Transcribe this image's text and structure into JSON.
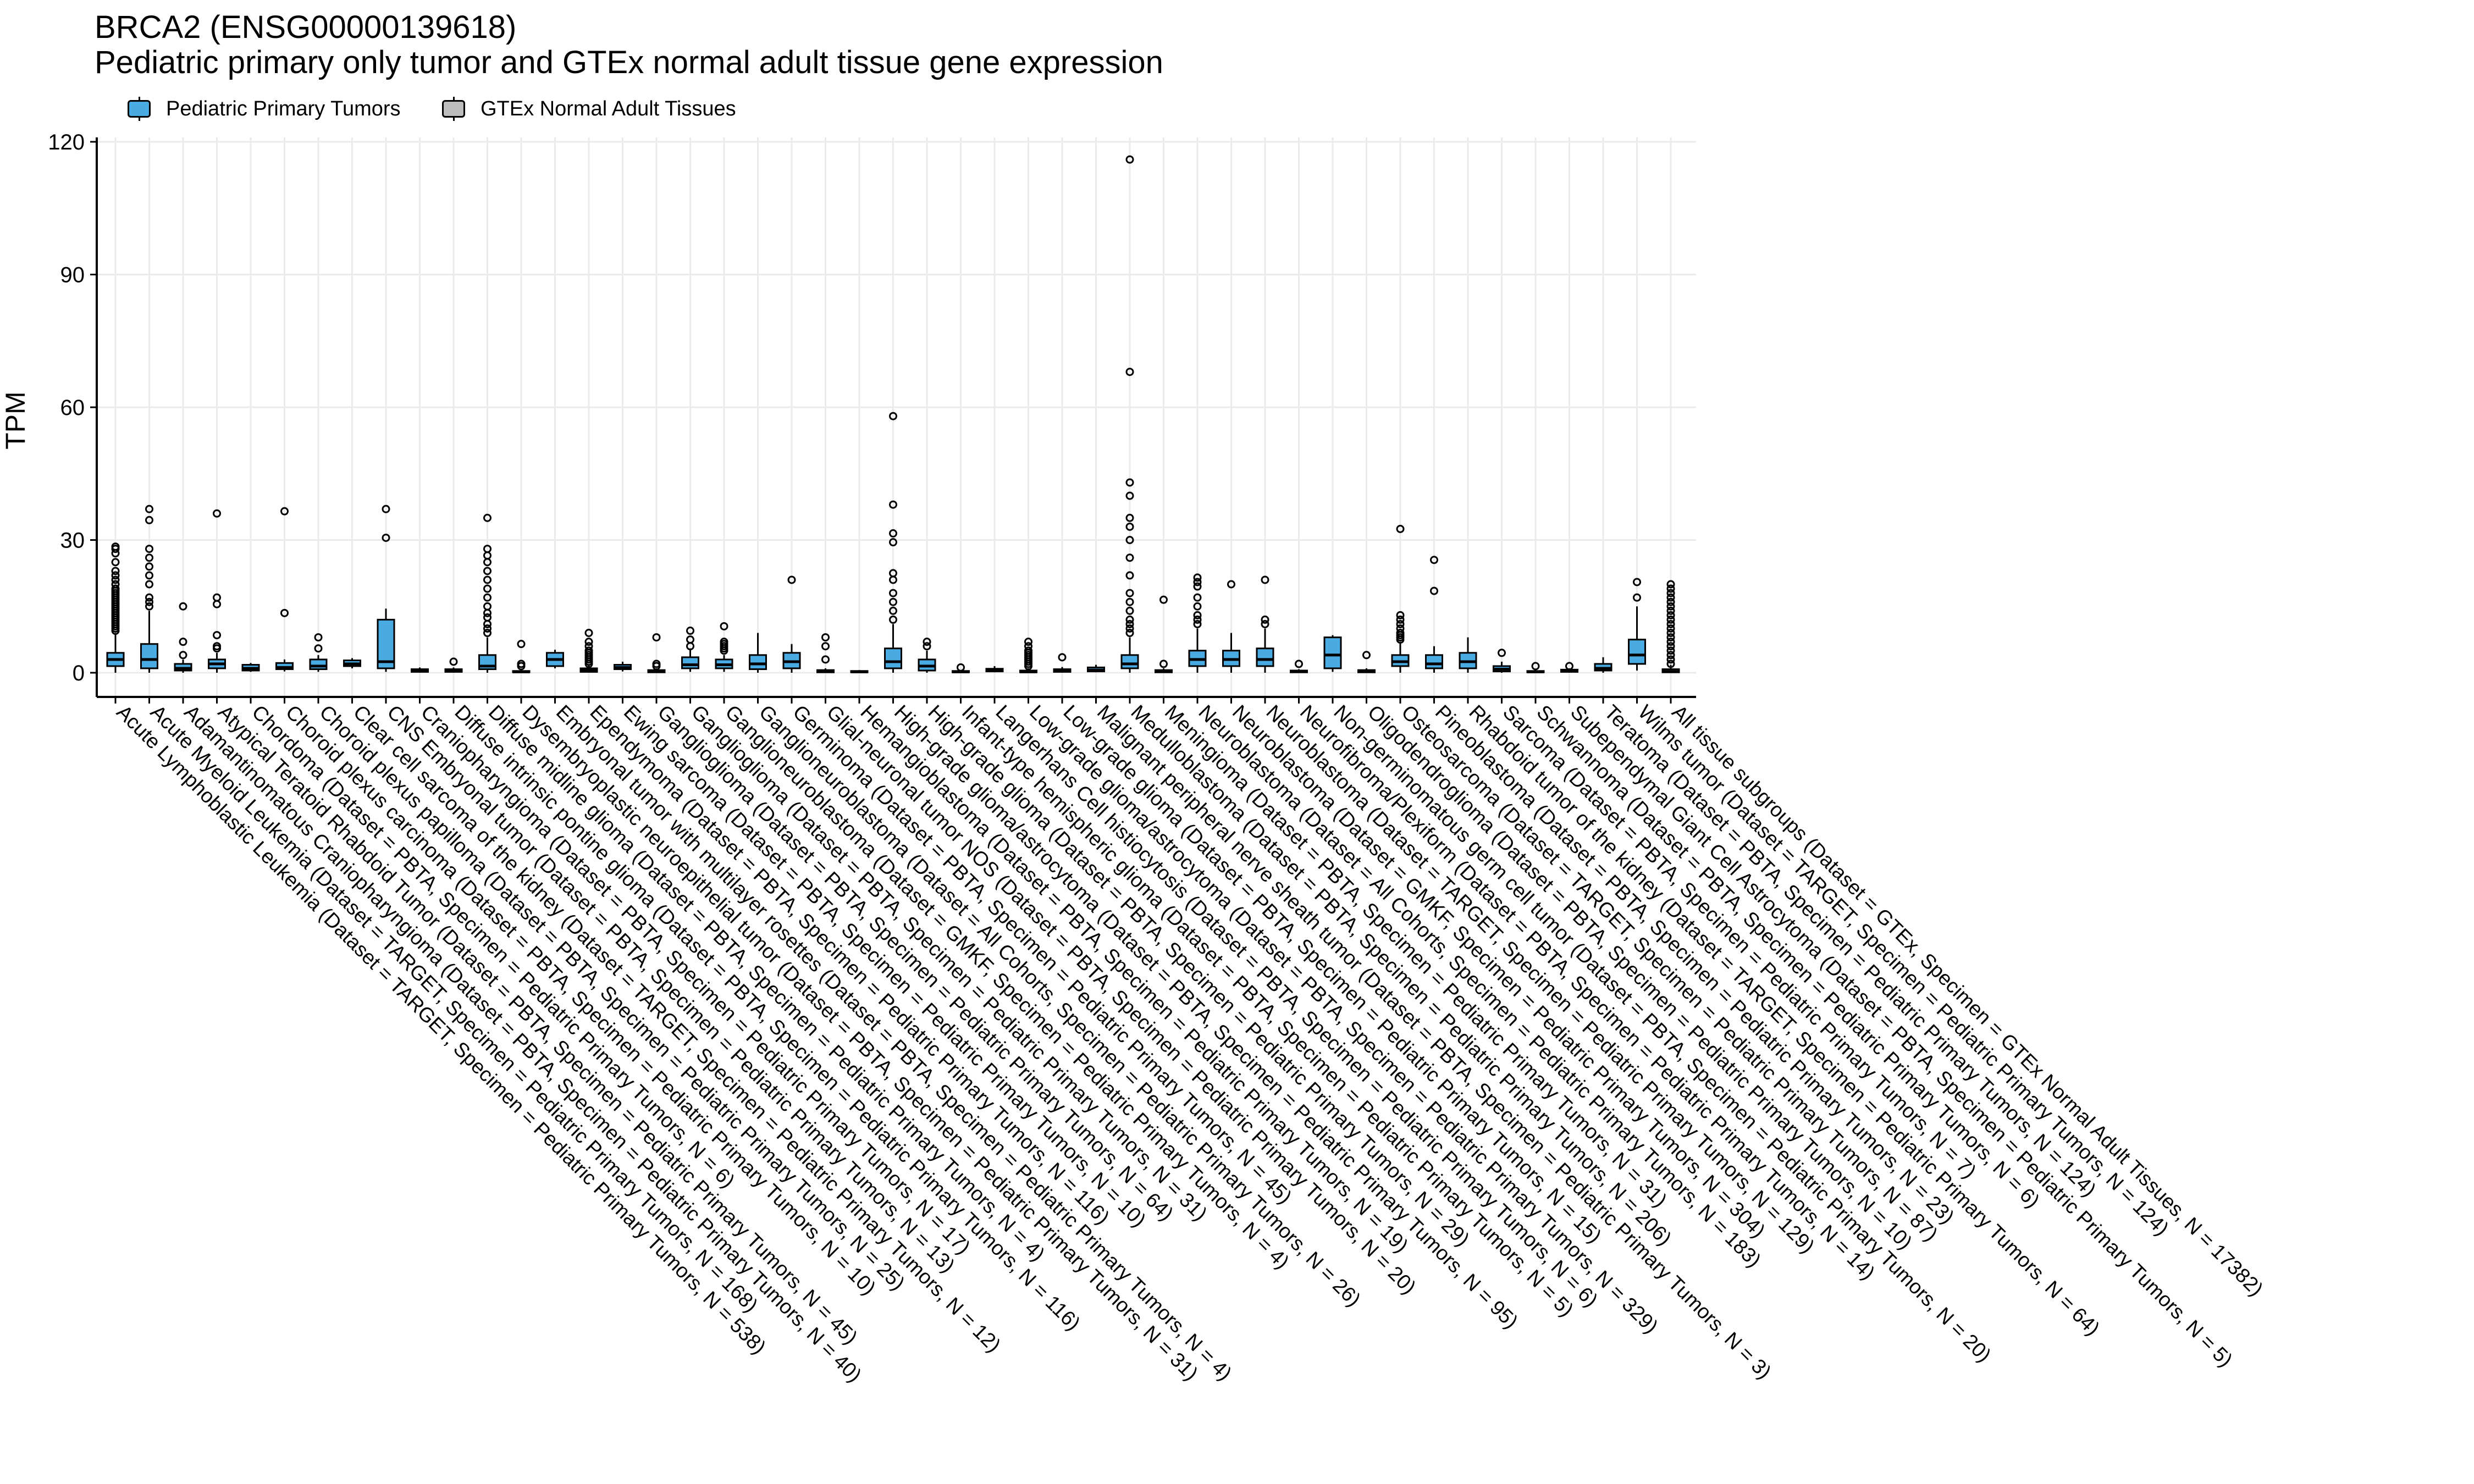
{
  "title": {
    "line1": "BRCA2 (ENSG00000139618)",
    "line2": "Pediatric primary only tumor and GTEx normal adult tissue gene expression"
  },
  "legend": {
    "items": [
      {
        "label": "Pediatric Primary Tumors",
        "color": "#4AABE3"
      },
      {
        "label": "GTEx Normal Adult Tissues",
        "color": "#BDBDBD"
      }
    ]
  },
  "chart_data": {
    "type": "boxplot",
    "ylabel": "TPM",
    "xlabel": "",
    "ylim": [
      0,
      120
    ],
    "yticks": [
      0,
      30,
      60,
      90,
      120
    ],
    "grid": true,
    "legend_position": "top-left",
    "series": [
      {
        "category": "Acute Lymphoblastic Leukemia (Dataset = TARGET, Specimen = Pediatric Primary Tumors, N = 538)",
        "group": "tumor",
        "q1": 1.5,
        "median": 3,
        "q3": 4.5,
        "whisker_low": 0,
        "whisker_high": 9,
        "outliers": [
          9.5,
          10,
          10.5,
          11,
          11.5,
          12,
          12.5,
          13,
          13.5,
          14,
          14.5,
          15,
          15.5,
          16,
          16.5,
          17,
          17.5,
          18,
          18.5,
          19,
          20,
          21,
          22,
          23,
          25,
          27,
          28,
          28.5
        ]
      },
      {
        "category": "Acute Myeloid Leukemia (Dataset = TARGET, Specimen = Pediatric Primary Tumors, N = 168)",
        "group": "tumor",
        "q1": 1,
        "median": 3,
        "q3": 6.5,
        "whisker_low": 0,
        "whisker_high": 14,
        "outliers": [
          15,
          16,
          17,
          20,
          22,
          24,
          26,
          28,
          34.5,
          37
        ]
      },
      {
        "category": "Adamantinomatous Craniopharyngioma (Dataset = PBTA, Specimen = Pediatric Primary Tumors, N = 40)",
        "group": "tumor",
        "q1": 0.5,
        "median": 1,
        "q3": 2,
        "whisker_low": 0,
        "whisker_high": 3,
        "outliers": [
          4,
          7,
          15
        ]
      },
      {
        "category": "Atypical Teratoid Rhabdoid Tumor (Dataset = PBTA, Specimen = Pediatric Primary Tumors, N = 45)",
        "group": "tumor",
        "q1": 1,
        "median": 2,
        "q3": 3,
        "whisker_low": 0,
        "whisker_high": 4.5,
        "outliers": [
          5.5,
          6,
          8.5,
          15.5,
          17,
          36
        ]
      },
      {
        "category": "Chordoma (Dataset = PBTA, Specimen = Pediatric Primary Tumors, N = 6)",
        "group": "tumor",
        "q1": 0.5,
        "median": 1,
        "q3": 1.8,
        "whisker_low": 0.2,
        "whisker_high": 2.2,
        "outliers": []
      },
      {
        "category": "Choroid plexus carcinoma (Dataset = PBTA, Specimen = Pediatric Primary Tumors, N = 10)",
        "group": "tumor",
        "q1": 0.8,
        "median": 1.2,
        "q3": 2.2,
        "whisker_low": 0.3,
        "whisker_high": 3,
        "outliers": [
          13.5,
          36.5
        ]
      },
      {
        "category": "Choroid plexus papilloma (Dataset = PBTA, Specimen = Pediatric Primary Tumors, N = 25)",
        "group": "tumor",
        "q1": 0.8,
        "median": 1.5,
        "q3": 3,
        "whisker_low": 0.2,
        "whisker_high": 4,
        "outliers": [
          5.5,
          8
        ]
      },
      {
        "category": "Clear cell sarcoma of the kidney (Dataset = TARGET, Specimen = Pediatric Primary Tumors, N = 12)",
        "group": "tumor",
        "q1": 1.5,
        "median": 2,
        "q3": 2.8,
        "whisker_low": 1,
        "whisker_high": 3.3,
        "outliers": []
      },
      {
        "category": "CNS Embryonal tumor (Dataset = PBTA, Specimen = Pediatric Primary Tumors, N = 13)",
        "group": "tumor",
        "q1": 1,
        "median": 2.5,
        "q3": 12,
        "whisker_low": 0.2,
        "whisker_high": 14.5,
        "outliers": [
          30.5,
          37
        ]
      },
      {
        "category": "Craniopharyngioma (Dataset = PBTA, Specimen = Pediatric Primary Tumors, N = 17)",
        "group": "tumor",
        "q1": 0.2,
        "median": 0.4,
        "q3": 0.8,
        "whisker_low": 0,
        "whisker_high": 1.2,
        "outliers": []
      },
      {
        "category": "Diffuse intrinsic pontine glioma (Dataset = PBTA, Specimen = Pediatric Primary Tumors, N = 116)",
        "group": "tumor",
        "q1": 0.2,
        "median": 0.4,
        "q3": 0.8,
        "whisker_low": 0,
        "whisker_high": 1.2,
        "outliers": [
          2.5
        ]
      },
      {
        "category": "Diffuse midline glioma (Dataset = PBTA, Specimen = Pediatric Primary Tumors, N = 4)",
        "group": "tumor",
        "q1": 0.8,
        "median": 1.5,
        "q3": 4,
        "whisker_low": 0,
        "whisker_high": 8,
        "outliers": [
          9,
          10,
          11,
          12.5,
          13.5,
          15,
          17,
          19,
          21,
          23,
          25,
          26.5,
          28,
          35
        ]
      },
      {
        "category": "Dysembryoplastic neuroepithelial tumor (Dataset = PBTA, Specimen = Pediatric Primary Tumors, N = 31)",
        "group": "tumor",
        "q1": 0.1,
        "median": 0.2,
        "q3": 0.4,
        "whisker_low": 0,
        "whisker_high": 0.6,
        "outliers": [
          1.5,
          2,
          6.5
        ]
      },
      {
        "category": "Embryonal tumor with multilayer rosettes (Dataset = PBTA, Specimen = Pediatric Primary Tumors, N = 4)",
        "group": "tumor",
        "q1": 1.5,
        "median": 3,
        "q3": 4.5,
        "whisker_low": 1,
        "whisker_high": 5.2,
        "outliers": []
      },
      {
        "category": "Ependymoma (Dataset = PBTA, Specimen = Pediatric Primary Tumors, N = 116)",
        "group": "tumor",
        "q1": 0.2,
        "median": 0.5,
        "q3": 1,
        "whisker_low": 0,
        "whisker_high": 1.8,
        "outliers": [
          2,
          2.5,
          3,
          3.5,
          4,
          4.5,
          5,
          6,
          7,
          9
        ]
      },
      {
        "category": "Ewing sarcoma (Dataset = PBTA, Specimen = Pediatric Primary Tumors, N = 10)",
        "group": "tumor",
        "q1": 0.8,
        "median": 1.2,
        "q3": 1.8,
        "whisker_low": 0.3,
        "whisker_high": 2.5,
        "outliers": []
      },
      {
        "category": "Ganglioglioma (Dataset = PBTA, Specimen = Pediatric Primary Tumors, N = 64)",
        "group": "tumor",
        "q1": 0.1,
        "median": 0.3,
        "q3": 0.6,
        "whisker_low": 0,
        "whisker_high": 1,
        "outliers": [
          1.5,
          2,
          8
        ]
      },
      {
        "category": "Ganglioglioma (Dataset = PBTA, Specimen = Pediatric Primary Tumors, N = 31)",
        "group": "tumor",
        "q1": 1,
        "median": 1.8,
        "q3": 3.5,
        "whisker_low": 0.2,
        "whisker_high": 5.5,
        "outliers": [
          6,
          7.5,
          9.5
        ]
      },
      {
        "category": "Ganglioneuroblastoma (Dataset = GMKF, Specimen = Pediatric Primary Tumors, N = 4)",
        "group": "tumor",
        "q1": 1,
        "median": 1.8,
        "q3": 3,
        "whisker_low": 0.2,
        "whisker_high": 4,
        "outliers": [
          5,
          5.5,
          6,
          6.5,
          7,
          10.5
        ]
      },
      {
        "category": "Ganglioneuroblastoma (Dataset = All Cohorts, Specimen = Pediatric Primary Tumors, N = 26)",
        "group": "tumor",
        "q1": 0.8,
        "median": 2,
        "q3": 4,
        "whisker_low": 0,
        "whisker_high": 9,
        "outliers": []
      },
      {
        "category": "Germinoma (Dataset = PBTA, Specimen = Pediatric Primary Tumors, N = 45)",
        "group": "tumor",
        "q1": 1,
        "median": 2.5,
        "q3": 4.5,
        "whisker_low": 0,
        "whisker_high": 6.5,
        "outliers": [
          21
        ]
      },
      {
        "category": "Glial-neuronal tumor NOS (Dataset = PBTA, Specimen = Pediatric Primary Tumors, N = 20)",
        "group": "tumor",
        "q1": 0.1,
        "median": 0.3,
        "q3": 0.6,
        "whisker_low": 0,
        "whisker_high": 1,
        "outliers": [
          3,
          6,
          8
        ]
      },
      {
        "category": "Hemangioblastoma (Dataset = PBTA, Specimen = Pediatric Primary Tumors, N = 19)",
        "group": "tumor",
        "q1": 0.1,
        "median": 0.2,
        "q3": 0.4,
        "whisker_low": 0,
        "whisker_high": 0.6,
        "outliers": []
      },
      {
        "category": "High-grade glioma/astrocytoma (Dataset = PBTA, Specimen = Pediatric Primary Tumors, N = 95)",
        "group": "tumor",
        "q1": 1,
        "median": 2.5,
        "q3": 5.5,
        "whisker_low": 0,
        "whisker_high": 11,
        "outliers": [
          12,
          14,
          16,
          18,
          21,
          22.5,
          29.5,
          31.5,
          38,
          58
        ]
      },
      {
        "category": "High-grade glioma (Dataset = PBTA, Specimen = Pediatric Primary Tumors, N = 29)",
        "group": "tumor",
        "q1": 0.5,
        "median": 1.5,
        "q3": 3,
        "whisker_low": 0,
        "whisker_high": 5,
        "outliers": [
          6,
          7
        ]
      },
      {
        "category": "Infant-type hemispheric glioma (Dataset = PBTA, Specimen = Pediatric Primary Tumors, N = 5)",
        "group": "tumor",
        "q1": 0.1,
        "median": 0.2,
        "q3": 0.4,
        "whisker_low": 0,
        "whisker_high": 0.6,
        "outliers": [
          1.2
        ]
      },
      {
        "category": "Langerhans Cell histiocytosis (Dataset = PBTA, Specimen = Pediatric Primary Tumors, N = 6)",
        "group": "tumor",
        "q1": 0.3,
        "median": 0.5,
        "q3": 0.9,
        "whisker_low": 0.1,
        "whisker_high": 1.5,
        "outliers": []
      },
      {
        "category": "Low-grade glioma/astrocytoma (Dataset = PBTA, Specimen = Pediatric Primary Tumors, N = 329)",
        "group": "tumor",
        "q1": 0.1,
        "median": 0.2,
        "q3": 0.5,
        "whisker_low": 0,
        "whisker_high": 1,
        "outliers": [
          1.5,
          2,
          2.5,
          3,
          3.5,
          4,
          4.5,
          5,
          6,
          7
        ]
      },
      {
        "category": "Low-grade glioma (Dataset = PBTA, Specimen = Pediatric Primary Tumors, N = 15)",
        "group": "tumor",
        "q1": 0.2,
        "median": 0.4,
        "q3": 0.8,
        "whisker_low": 0,
        "whisker_high": 1.3,
        "outliers": [
          3.5
        ]
      },
      {
        "category": "Malignant peripheral nerve sheath tumor (Dataset = PBTA, Specimen = Pediatric Primary Tumors, N = 3)",
        "group": "tumor",
        "q1": 0.3,
        "median": 0.6,
        "q3": 1.2,
        "whisker_low": 0.1,
        "whisker_high": 1.8,
        "outliers": []
      },
      {
        "category": "Medulloblastoma (Dataset = PBTA, Specimen = Pediatric Primary Tumors, N = 206)",
        "group": "tumor",
        "q1": 1,
        "median": 2,
        "q3": 4,
        "whisker_low": 0,
        "whisker_high": 8,
        "outliers": [
          9,
          10,
          11,
          12,
          14,
          16,
          18,
          22,
          26,
          30,
          33,
          35,
          40,
          43,
          68,
          116
        ]
      },
      {
        "category": "Meningioma (Dataset = PBTA, Specimen = Pediatric Primary Tumors, N = 31)",
        "group": "tumor",
        "q1": 0.1,
        "median": 0.3,
        "q3": 0.6,
        "whisker_low": 0,
        "whisker_high": 1,
        "outliers": [
          2,
          16.5
        ]
      },
      {
        "category": "Neuroblastoma (Dataset = All Cohorts, Specimen = Pediatric Primary Tumors, N = 183)",
        "group": "tumor",
        "q1": 1.5,
        "median": 3,
        "q3": 5,
        "whisker_low": 0,
        "whisker_high": 10,
        "outliers": [
          11,
          12,
          13,
          15,
          17,
          19.5,
          20.5,
          21.5
        ]
      },
      {
        "category": "Neuroblastoma (Dataset = GMKF, Specimen = Pediatric Primary Tumors, N = 304)",
        "group": "tumor",
        "q1": 1.5,
        "median": 3,
        "q3": 5,
        "whisker_low": 0,
        "whisker_high": 9,
        "outliers": [
          20
        ]
      },
      {
        "category": "Neuroblastoma (Dataset = TARGET, Specimen = Pediatric Primary Tumors, N = 129)",
        "group": "tumor",
        "q1": 1.5,
        "median": 3,
        "q3": 5.5,
        "whisker_low": 0,
        "whisker_high": 10,
        "outliers": [
          11,
          12,
          21
        ]
      },
      {
        "category": "Neurofibroma/Plexiform (Dataset = PBTA, Specimen = Pediatric Primary Tumors, N = 14)",
        "group": "tumor",
        "q1": 0.1,
        "median": 0.3,
        "q3": 0.5,
        "whisker_low": 0,
        "whisker_high": 0.8,
        "outliers": [
          2
        ]
      },
      {
        "category": "Non-germinomatous germ cell tumor (Dataset = PBTA, Specimen = Pediatric Primary Tumors, N = 20)",
        "group": "tumor",
        "q1": 1,
        "median": 4,
        "q3": 8,
        "whisker_low": 0.2,
        "whisker_high": 8.5,
        "outliers": []
      },
      {
        "category": "Oligodendroglioma (Dataset = PBTA, Specimen = Pediatric Primary Tumors, N = 10)",
        "group": "tumor",
        "q1": 0.1,
        "median": 0.3,
        "q3": 0.6,
        "whisker_low": 0,
        "whisker_high": 1,
        "outliers": [
          4
        ]
      },
      {
        "category": "Osteosarcoma (Dataset = TARGET, Specimen = Pediatric Primary Tumors, N = 87)",
        "group": "tumor",
        "q1": 1.5,
        "median": 2.5,
        "q3": 4,
        "whisker_low": 0,
        "whisker_high": 7,
        "outliers": [
          7.5,
          8,
          8.5,
          9,
          10,
          11,
          12,
          13,
          32.5
        ]
      },
      {
        "category": "Pineoblastoma (Dataset = PBTA, Specimen = Pediatric Primary Tumors, N = 23)",
        "group": "tumor",
        "q1": 1,
        "median": 2,
        "q3": 4,
        "whisker_low": 0,
        "whisker_high": 6,
        "outliers": [
          18.5,
          25.5
        ]
      },
      {
        "category": "Rhabdoid tumor of the kidney (Dataset = TARGET, Specimen = Pediatric Primary Tumors, N = 64)",
        "group": "tumor",
        "q1": 1,
        "median": 2.5,
        "q3": 4.5,
        "whisker_low": 0,
        "whisker_high": 8,
        "outliers": []
      },
      {
        "category": "Sarcoma (Dataset = PBTA, Specimen = Pediatric Primary Tumors, N = 7)",
        "group": "tumor",
        "q1": 0.3,
        "median": 0.8,
        "q3": 1.5,
        "whisker_low": 0,
        "whisker_high": 2.5,
        "outliers": [
          4.5
        ]
      },
      {
        "category": "Schwannoma (Dataset = PBTA, Specimen = Pediatric Primary Tumors, N = 6)",
        "group": "tumor",
        "q1": 0.1,
        "median": 0.2,
        "q3": 0.4,
        "whisker_low": 0,
        "whisker_high": 0.6,
        "outliers": [
          1.5
        ]
      },
      {
        "category": "Subependymal Giant Cell Astrocytoma (Dataset = PBTA, Specimen = Pediatric Primary Tumors, N = 5)",
        "group": "tumor",
        "q1": 0.2,
        "median": 0.4,
        "q3": 0.7,
        "whisker_low": 0,
        "whisker_high": 1,
        "outliers": [
          1.5
        ]
      },
      {
        "category": "Teratoma (Dataset = PBTA, Specimen = Pediatric Primary Tumors, N = 124)",
        "group": "tumor",
        "q1": 0.5,
        "median": 1,
        "q3": 2,
        "whisker_low": 0,
        "whisker_high": 3.5,
        "outliers": []
      },
      {
        "category": "Wilms tumor (Dataset = TARGET, Specimen = Pediatric Primary Tumors, N = 124)",
        "group": "tumor",
        "q1": 2,
        "median": 4,
        "q3": 7.5,
        "whisker_low": 0.5,
        "whisker_high": 15,
        "outliers": [
          17,
          20.5
        ]
      },
      {
        "category": "All tissue subgroups (Dataset = GTEx, Specimen = GTEx Normal Adult Tissues, N = 17382)",
        "group": "gtex",
        "q1": 0.1,
        "median": 0.3,
        "q3": 0.8,
        "whisker_low": 0,
        "whisker_high": 1.8,
        "outliers": [
          2,
          3,
          4,
          5,
          6,
          7,
          8,
          9,
          10,
          11,
          12,
          13,
          14,
          15,
          16,
          17,
          18,
          19,
          20
        ]
      }
    ]
  }
}
